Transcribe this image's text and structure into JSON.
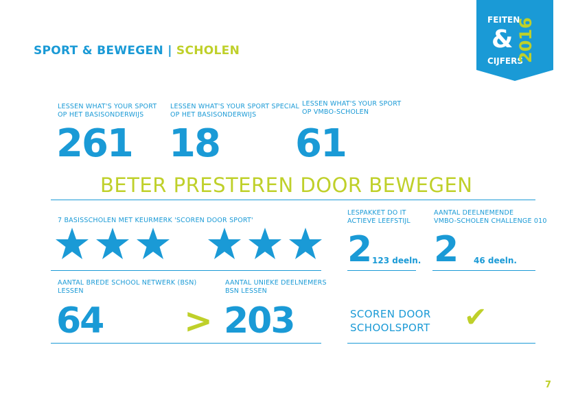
{
  "header": {
    "section": "SPORT & BEWEGEN",
    "separator": "|",
    "subsection": "SCHOLEN"
  },
  "badge": {
    "line1": "FEITEN",
    "amp": "&",
    "line2": "CIJFERS",
    "year": "2016",
    "colors": {
      "background": "#1a9ad6",
      "year": "#bfd02a"
    }
  },
  "top_stats": [
    {
      "label_line1": "LESSEN WHAT'S YOUR SPORT",
      "label_line2": "OP HET BASISONDERWIJS",
      "value": "261"
    },
    {
      "label_line1": "LESSEN WHAT'S YOUR SPORT SPECIAL",
      "label_line2": "OP HET BASISONDERWIJS",
      "value": "18"
    },
    {
      "label_line1": "LESSEN WHAT'S YOUR SPORT",
      "label_line2": "OP VMBO-SCHOLEN",
      "value": "61"
    }
  ],
  "headline": "BETER PRESTEREN DOOR BEWEGEN",
  "keurmerk": {
    "label": "7 BASISSCHOLEN MET KEURMERK 'SCOREN DOOR SPORT'",
    "star_count": 6,
    "star_icon": "star-icon"
  },
  "lespakket": {
    "label_line1": "LESPAKKET DO IT",
    "label_line2": "ACTIEVE LEEFSTIJL",
    "value": "2",
    "suffix": "123 deeln."
  },
  "vmbo_challenge": {
    "label_line1": "AANTAL DEELNEMENDE",
    "label_line2": "VMBO-SCHOLEN CHALLENGE 010",
    "value": "2",
    "suffix": "46 deeln."
  },
  "bsn_lessen": {
    "label_line1": "AANTAL BREDE SCHOOL NETWERK (BSN)",
    "label_line2": "LESSEN",
    "value": "64"
  },
  "comparator": ">",
  "bsn_deelnemers": {
    "label_line1": "AANTAL UNIEKE DEELNEMERS",
    "label_line2": "BSN LESSEN",
    "value": "203"
  },
  "schoolsport": {
    "line1": "SCOREN DOOR",
    "line2": "SCHOOLSPORT",
    "check_icon": "checkmark-icon"
  },
  "page_number": "7",
  "colors": {
    "blue": "#1a9ad6",
    "lime": "#bfd02a"
  }
}
